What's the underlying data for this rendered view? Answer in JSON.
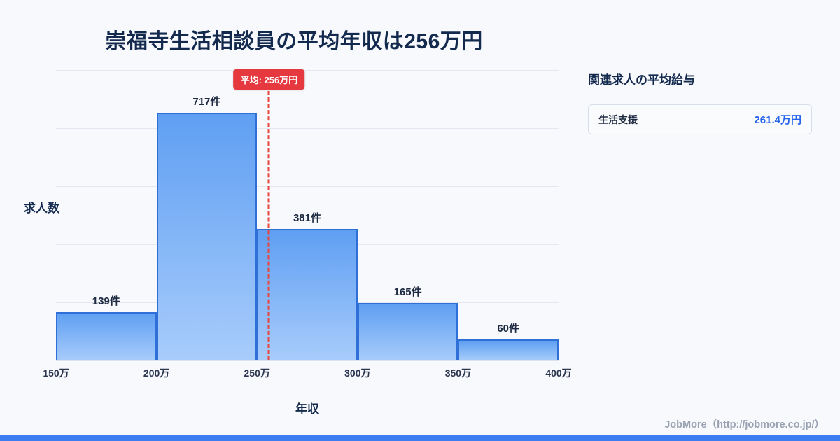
{
  "title": "崇福寺生活相談員の平均年収は256万円",
  "chart_data": {
    "type": "bar",
    "title": "崇福寺生活相談員の平均年収は256万円",
    "categories": [
      "150万",
      "200万",
      "250万",
      "300万",
      "350万",
      "400万"
    ],
    "values": [
      139,
      717,
      381,
      165,
      60
    ],
    "bar_labels": [
      "139件",
      "717件",
      "381件",
      "165件",
      "60件"
    ],
    "xlabel": "年収",
    "ylabel": "求人数",
    "ylim": [
      0,
      840
    ],
    "x_min": 150,
    "x_max": 400,
    "mean": 256,
    "mean_label": "平均: 256万円",
    "grid": true,
    "legend_position": "none"
  },
  "sidebar": {
    "heading": "関連求人の平均給与",
    "items": [
      {
        "label": "生活支援",
        "value": "261.4万円"
      }
    ]
  },
  "footer": {
    "credit": "JobMore（http://jobmore.co.jp/）"
  },
  "colors": {
    "background": "#f7f9fc",
    "bar_fill_top": "#5f9ff2",
    "bar_fill_bottom": "#a8ccfb",
    "bar_border": "#2e6fd8",
    "mean_line": "#e8453c",
    "mean_label_bg": "#e5393f",
    "value_accent": "#2563eb",
    "heading_text": "#13294e",
    "bottom_strip": "#3c7df2"
  }
}
